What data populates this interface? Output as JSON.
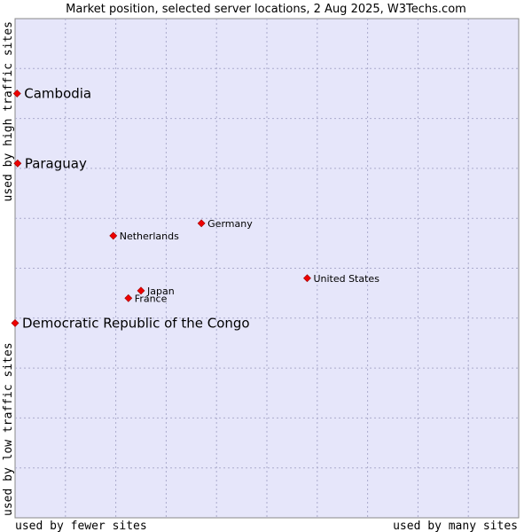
{
  "chart_data": {
    "type": "scatter",
    "title": "Market position, selected server locations, 2 Aug 2025, W3Techs.com",
    "xlabel_left": "used by fewer sites",
    "xlabel_right": "used by many sites",
    "ylabel_bottom": "used by low traffic sites",
    "ylabel_top": "used by high traffic sites",
    "xlim": [
      0,
      10
    ],
    "ylim": [
      0,
      10
    ],
    "grid": true,
    "colors": {
      "plot_bg": "#e6e6fa",
      "grid": "#aaaacc",
      "marker": "#ee0000",
      "border": "#888888"
    },
    "points": [
      {
        "label": "Cambodia",
        "x": 0.04,
        "y": 8.5,
        "size": "large"
      },
      {
        "label": "Paraguay",
        "x": 0.05,
        "y": 7.1,
        "size": "large"
      },
      {
        "label": "Democratic Republic of the Congo",
        "x": 0.0,
        "y": 3.9,
        "size": "large"
      },
      {
        "label": "Germany",
        "x": 3.7,
        "y": 5.9,
        "size": "small"
      },
      {
        "label": "Netherlands",
        "x": 1.95,
        "y": 5.65,
        "size": "small"
      },
      {
        "label": "United States",
        "x": 5.8,
        "y": 4.8,
        "size": "small"
      },
      {
        "label": "Japan",
        "x": 2.5,
        "y": 4.55,
        "size": "small"
      },
      {
        "label": "France",
        "x": 2.25,
        "y": 4.4,
        "size": "small"
      }
    ]
  }
}
